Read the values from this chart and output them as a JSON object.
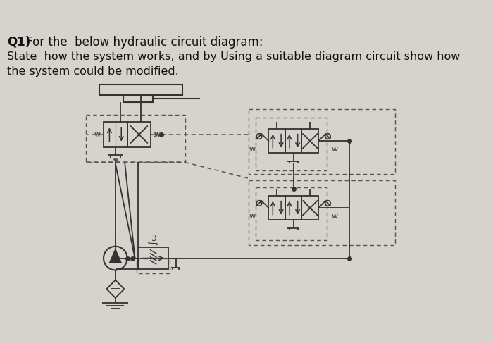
{
  "bg_color": "#d6d2cc",
  "text_color": "#111111",
  "line_color": "#333333",
  "dashed_color": "#555555",
  "title_bold": "Q1)",
  "title_normal": " For the  below hydraulic circuit diagram:",
  "subtitle": "State  how the system works, and by Using a suitable diagram circuit show how\nthe system could be modified.",
  "title_fontsize": 12,
  "subtitle_fontsize": 11.5
}
